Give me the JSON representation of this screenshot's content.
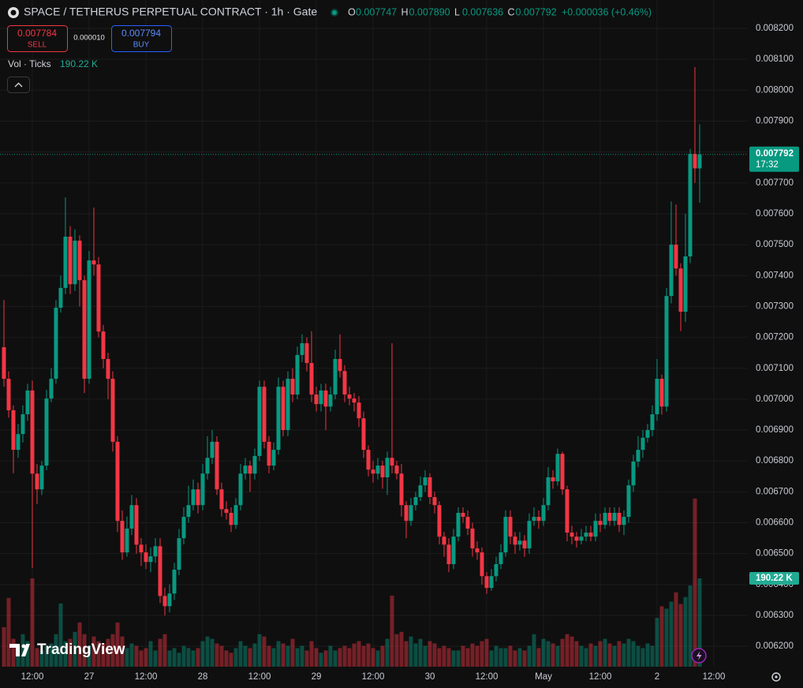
{
  "header": {
    "title": "SPACE / TETHERUS PERPETUAL CONTRACT · 1h · Gate",
    "ohlc": [
      {
        "letter": "O",
        "value": "0.007747"
      },
      {
        "letter": "H",
        "value": "0.007890"
      },
      {
        "letter": "L",
        "value": "0.007636"
      },
      {
        "letter": "C",
        "value": "0.007792"
      }
    ],
    "change": "+0.000036 (+0.46%)"
  },
  "trade": {
    "sell_price": "0.007784",
    "sell_label": "SELL",
    "spread": "0.000010",
    "buy_price": "0.007794",
    "buy_label": "BUY"
  },
  "watermark": "TradingView",
  "chart_data": {
    "type": "candlestick",
    "up_color": "#089981",
    "down_color": "#f23645",
    "grid": true,
    "countdown": "17:32",
    "ylim": [
      0.006134,
      0.008292
    ],
    "yticks": [
      {
        "value": 0.0062,
        "label": "0.006200"
      },
      {
        "value": 0.0063,
        "label": "0.006300"
      },
      {
        "value": 0.0064,
        "label": "0.006400"
      },
      {
        "value": 0.0065,
        "label": "0.006500"
      },
      {
        "value": 0.0066,
        "label": "0.006600"
      },
      {
        "value": 0.0067,
        "label": "0.006700"
      },
      {
        "value": 0.0068,
        "label": "0.006800"
      },
      {
        "value": 0.0069,
        "label": "0.006900"
      },
      {
        "value": 0.007,
        "label": "0.007000"
      },
      {
        "value": 0.0071,
        "label": "0.007100"
      },
      {
        "value": 0.0072,
        "label": "0.007200"
      },
      {
        "value": 0.0073,
        "label": "0.007300"
      },
      {
        "value": 0.0074,
        "label": "0.007400"
      },
      {
        "value": 0.0075,
        "label": "0.007500"
      },
      {
        "value": 0.0076,
        "label": "0.007600"
      },
      {
        "value": 0.0077,
        "label": "0.007700"
      },
      {
        "value": 0.0078,
        "label": "0.007800"
      },
      {
        "value": 0.0079,
        "label": "0.007900"
      },
      {
        "value": 0.008,
        "label": "0.008000"
      },
      {
        "value": 0.0081,
        "label": "0.008100"
      },
      {
        "value": 0.0082,
        "label": "0.008200"
      }
    ],
    "xlim": [
      -0.83,
      157.17
    ],
    "xticks": [
      {
        "value": 6,
        "label": "12:00"
      },
      {
        "value": 18,
        "label": "27"
      },
      {
        "value": 30,
        "label": "12:00"
      },
      {
        "value": 42,
        "label": "28"
      },
      {
        "value": 54,
        "label": "12:00"
      },
      {
        "value": 66,
        "label": "29"
      },
      {
        "value": 78,
        "label": "12:00"
      },
      {
        "value": 90,
        "label": "30"
      },
      {
        "value": 102,
        "label": "12:00"
      },
      {
        "value": 114,
        "label": "May"
      },
      {
        "value": 126,
        "label": "12:00"
      },
      {
        "value": 138,
        "label": "2"
      },
      {
        "value": 150,
        "label": "12:00"
      }
    ],
    "open": [
      0.007168,
      0.007066,
      0.006964,
      0.006836,
      0.006887,
      0.006951,
      0.007028,
      0.006759,
      0.006708,
      0.006785,
      0.007002,
      0.007066,
      0.007296,
      0.00736,
      0.007526,
      0.007372,
      0.007513,
      0.007385,
      0.007066,
      0.007449,
      0.007436,
      0.007219,
      0.00713,
      0.007066,
      0.006862,
      0.006606,
      0.006504,
      0.006581,
      0.006657,
      0.006529,
      0.006504,
      0.006473,
      0.006491,
      0.006524,
      0.006363,
      0.00633,
      0.006371,
      0.006448,
      0.00655,
      0.006619,
      0.006657,
      0.006708,
      0.006657,
      0.006759,
      0.00681,
      0.006862,
      0.006708,
      0.006644,
      0.006632,
      0.006593,
      0.006657,
      0.006759,
      0.006785,
      0.006759,
      0.006816,
      0.00704,
      0.006862,
      0.006785,
      0.006836,
      0.00704,
      0.0069,
      0.007066,
      0.007015,
      0.007143,
      0.007181,
      0.007117,
      0.007015,
      0.006984,
      0.007028,
      0.006976,
      0.007015,
      0.00713,
      0.007091,
      0.007015,
      0.007002,
      0.006989,
      0.006938,
      0.006836,
      0.006772,
      0.006759,
      0.006785,
      0.006747,
      0.00681,
      0.006785,
      0.006759,
      0.006657,
      0.006606,
      0.006657,
      0.006683,
      0.006721,
      0.006747,
      0.006683,
      0.006657,
      0.006555,
      0.006529,
      0.006466,
      0.006555,
      0.006632,
      0.006619,
      0.006581,
      0.006517,
      0.006504,
      0.006427,
      0.006389,
      0.006427,
      0.006466,
      0.006504,
      0.006619,
      0.006555,
      0.006529,
      0.006542,
      0.006517,
      0.006606,
      0.006619,
      0.006606,
      0.006657,
      0.006747,
      0.006734,
      0.006823,
      0.006708,
      0.006568,
      0.006555,
      0.006542,
      0.006555,
      0.006568,
      0.006555,
      0.006606,
      0.006593,
      0.006632,
      0.006606,
      0.006632,
      0.006593,
      0.006619,
      0.006721,
      0.006798,
      0.006836,
      0.006875,
      0.0069,
      0.006951,
      0.007066,
      0.006976,
      0.007334,
      0.0075,
      0.007423,
      0.007283,
      0.007462,
      0.007794,
      0.007747
    ],
    "high": [
      0.007321,
      0.00709,
      0.00698,
      0.00692,
      0.00698,
      0.00705,
      0.00706,
      0.00679,
      0.0068,
      0.00703,
      0.0071,
      0.00732,
      0.0074,
      0.007653,
      0.00756,
      0.00755,
      0.00753,
      0.0074,
      0.00748,
      0.00762,
      0.00746,
      0.00724,
      0.00715,
      0.00709,
      0.00688,
      0.00664,
      0.00662,
      0.00669,
      0.00668,
      0.00655,
      0.00653,
      0.00652,
      0.00655,
      0.00655,
      0.00639,
      0.0064,
      0.00647,
      0.00658,
      0.00665,
      0.00672,
      0.00674,
      0.00673,
      0.00679,
      0.00688,
      0.0069,
      0.00688,
      0.00673,
      0.00667,
      0.00665,
      0.00668,
      0.00679,
      0.00681,
      0.0068,
      0.00684,
      0.00706,
      0.00706,
      0.00688,
      0.00686,
      0.00707,
      0.00706,
      0.00709,
      0.0071,
      0.00717,
      0.00721,
      0.0072,
      0.00722,
      0.00704,
      0.00705,
      0.00705,
      0.00704,
      0.00716,
      0.00721,
      0.00711,
      0.00704,
      0.00702,
      0.00701,
      0.00696,
      0.00685,
      0.0068,
      0.00681,
      0.0068,
      0.00683,
      0.007181,
      0.0068,
      0.00679,
      0.00667,
      0.00668,
      0.0067,
      0.00675,
      0.00677,
      0.00676,
      0.0067,
      0.00667,
      0.00657,
      0.00655,
      0.00658,
      0.00665,
      0.00665,
      0.00664,
      0.0066,
      0.00654,
      0.00652,
      0.00644,
      0.00645,
      0.00649,
      0.00653,
      0.00664,
      0.00664,
      0.00657,
      0.00657,
      0.00656,
      0.00663,
      0.00665,
      0.00664,
      0.00668,
      0.00678,
      0.00677,
      0.00684,
      0.00683,
      0.00672,
      0.00659,
      0.00657,
      0.00658,
      0.00659,
      0.00659,
      0.00663,
      0.00663,
      0.00665,
      0.00665,
      0.00665,
      0.00665,
      0.00664,
      0.00674,
      0.00682,
      0.00688,
      0.0069,
      0.00692,
      0.00698,
      0.00713,
      0.00708,
      0.00736,
      0.00764,
      0.00763,
      0.00744,
      0.0076,
      0.00781,
      0.008075,
      0.00789
    ],
    "low": [
      0.00704,
      0.00694,
      0.00676,
      0.00681,
      0.00686,
      0.00693,
      0.006453,
      0.00666,
      0.00669,
      0.00677,
      0.00699,
      0.00705,
      0.00728,
      0.00734,
      0.00734,
      0.00735,
      0.0073,
      0.00702,
      0.00705,
      0.0074,
      0.0072,
      0.0071,
      0.007,
      0.00683,
      0.00657,
      0.00648,
      0.00649,
      0.00656,
      0.0065,
      0.00646,
      0.00645,
      0.00644,
      0.00647,
      0.00634,
      0.0063,
      0.00631,
      0.00635,
      0.00643,
      0.00653,
      0.0066,
      0.00664,
      0.00663,
      0.00664,
      0.00674,
      0.00679,
      0.00669,
      0.00662,
      0.00661,
      0.00657,
      0.00658,
      0.00664,
      0.00674,
      0.0067,
      0.00674,
      0.0068,
      0.00684,
      0.00676,
      0.00677,
      0.00682,
      0.00688,
      0.00688,
      0.00699,
      0.007,
      0.00712,
      0.00709,
      0.00699,
      0.00696,
      0.00696,
      0.0069,
      0.00696,
      0.007,
      0.00707,
      0.00699,
      0.00698,
      0.00696,
      0.00691,
      0.00681,
      0.00675,
      0.00673,
      0.00674,
      0.00671,
      0.00669,
      0.00676,
      0.00674,
      0.00662,
      0.00655,
      0.00659,
      0.00664,
      0.00667,
      0.0067,
      0.00666,
      0.00663,
      0.00653,
      0.00649,
      0.00644,
      0.00645,
      0.00654,
      0.0066,
      0.00656,
      0.00649,
      0.00648,
      0.0064,
      0.00637,
      0.00638,
      0.00641,
      0.00645,
      0.00649,
      0.00653,
      0.0065,
      0.00651,
      0.00649,
      0.0065,
      0.00659,
      0.00658,
      0.00659,
      0.00664,
      0.00671,
      0.00672,
      0.00669,
      0.00654,
      0.00653,
      0.00652,
      0.00653,
      0.00654,
      0.00654,
      0.00654,
      0.00657,
      0.00658,
      0.00659,
      0.00659,
      0.00657,
      0.00656,
      0.0066,
      0.0067,
      0.00678,
      0.00681,
      0.00686,
      0.00688,
      0.00693,
      0.00695,
      0.00696,
      0.00731,
      0.0074,
      0.00722,
      0.00725,
      0.00744,
      0.0077,
      0.007636
    ],
    "close": [
      0.007066,
      0.006964,
      0.006836,
      0.006887,
      0.006951,
      0.007028,
      0.006759,
      0.006708,
      0.006785,
      0.007002,
      0.007066,
      0.007296,
      0.00736,
      0.007526,
      0.007372,
      0.007513,
      0.007385,
      0.007066,
      0.007449,
      0.007436,
      0.007219,
      0.00713,
      0.007066,
      0.006862,
      0.006606,
      0.006504,
      0.006581,
      0.006657,
      0.006529,
      0.006504,
      0.006473,
      0.006491,
      0.006524,
      0.006363,
      0.00633,
      0.006371,
      0.006448,
      0.00655,
      0.006619,
      0.006657,
      0.006708,
      0.006657,
      0.006759,
      0.00681,
      0.006862,
      0.006708,
      0.006644,
      0.006632,
      0.006593,
      0.006657,
      0.006759,
      0.006785,
      0.006759,
      0.006816,
      0.00704,
      0.006862,
      0.006785,
      0.006836,
      0.00704,
      0.0069,
      0.007066,
      0.007015,
      0.007143,
      0.007181,
      0.007117,
      0.007015,
      0.006984,
      0.007028,
      0.006976,
      0.007015,
      0.00713,
      0.007091,
      0.007015,
      0.007002,
      0.006989,
      0.006938,
      0.006836,
      0.006772,
      0.006759,
      0.006785,
      0.006747,
      0.00681,
      0.006785,
      0.006759,
      0.006657,
      0.006606,
      0.006657,
      0.006683,
      0.006721,
      0.006747,
      0.006683,
      0.006657,
      0.006555,
      0.006529,
      0.006466,
      0.006555,
      0.006632,
      0.006619,
      0.006581,
      0.006517,
      0.006504,
      0.006427,
      0.006389,
      0.006427,
      0.006466,
      0.006504,
      0.006619,
      0.006555,
      0.006529,
      0.006542,
      0.006517,
      0.006606,
      0.006619,
      0.006606,
      0.006657,
      0.006747,
      0.006734,
      0.006823,
      0.006708,
      0.006568,
      0.006555,
      0.006542,
      0.006555,
      0.006568,
      0.006555,
      0.006606,
      0.006593,
      0.006632,
      0.006606,
      0.006632,
      0.006593,
      0.006619,
      0.006721,
      0.006798,
      0.006836,
      0.006875,
      0.0069,
      0.006951,
      0.007066,
      0.006976,
      0.007334,
      0.0075,
      0.007423,
      0.007283,
      0.007462,
      0.007794,
      0.007747,
      0.007792
    ],
    "volume": {
      "name": "Vol · Ticks",
      "last_label": "190.22 K",
      "vlim": [
        0,
        1435000
      ],
      "values": [
        85000,
        148000,
        60000,
        45000,
        70000,
        55000,
        190000,
        40000,
        35000,
        45000,
        50000,
        70000,
        136000,
        55000,
        60000,
        75000,
        95000,
        70000,
        45000,
        65000,
        55000,
        50000,
        60000,
        70000,
        95000,
        65000,
        40000,
        50000,
        45000,
        35000,
        40000,
        55000,
        35000,
        60000,
        70000,
        35000,
        40000,
        30000,
        45000,
        40000,
        35000,
        40000,
        55000,
        65000,
        60000,
        50000,
        45000,
        35000,
        30000,
        40000,
        55000,
        45000,
        40000,
        50000,
        70000,
        65000,
        45000,
        40000,
        55000,
        50000,
        45000,
        60000,
        40000,
        45000,
        35000,
        55000,
        40000,
        30000,
        35000,
        45000,
        35000,
        40000,
        45000,
        40000,
        50000,
        55000,
        45000,
        50000,
        40000,
        35000,
        45000,
        60000,
        153000,
        70000,
        75000,
        55000,
        65000,
        50000,
        60000,
        45000,
        55000,
        50000,
        40000,
        45000,
        40000,
        35000,
        35000,
        45000,
        40000,
        50000,
        45000,
        55000,
        60000,
        35000,
        45000,
        40000,
        40000,
        45000,
        35000,
        40000,
        35000,
        45000,
        70000,
        40000,
        60000,
        55000,
        50000,
        45000,
        60000,
        70000,
        65000,
        55000,
        45000,
        40000,
        50000,
        45000,
        55000,
        60000,
        50000,
        45000,
        55000,
        50000,
        60000,
        55000,
        45000,
        40000,
        50000,
        45000,
        105000,
        130000,
        125000,
        140000,
        160000,
        135000,
        150000,
        175000,
        362000,
        190220
      ]
    }
  }
}
